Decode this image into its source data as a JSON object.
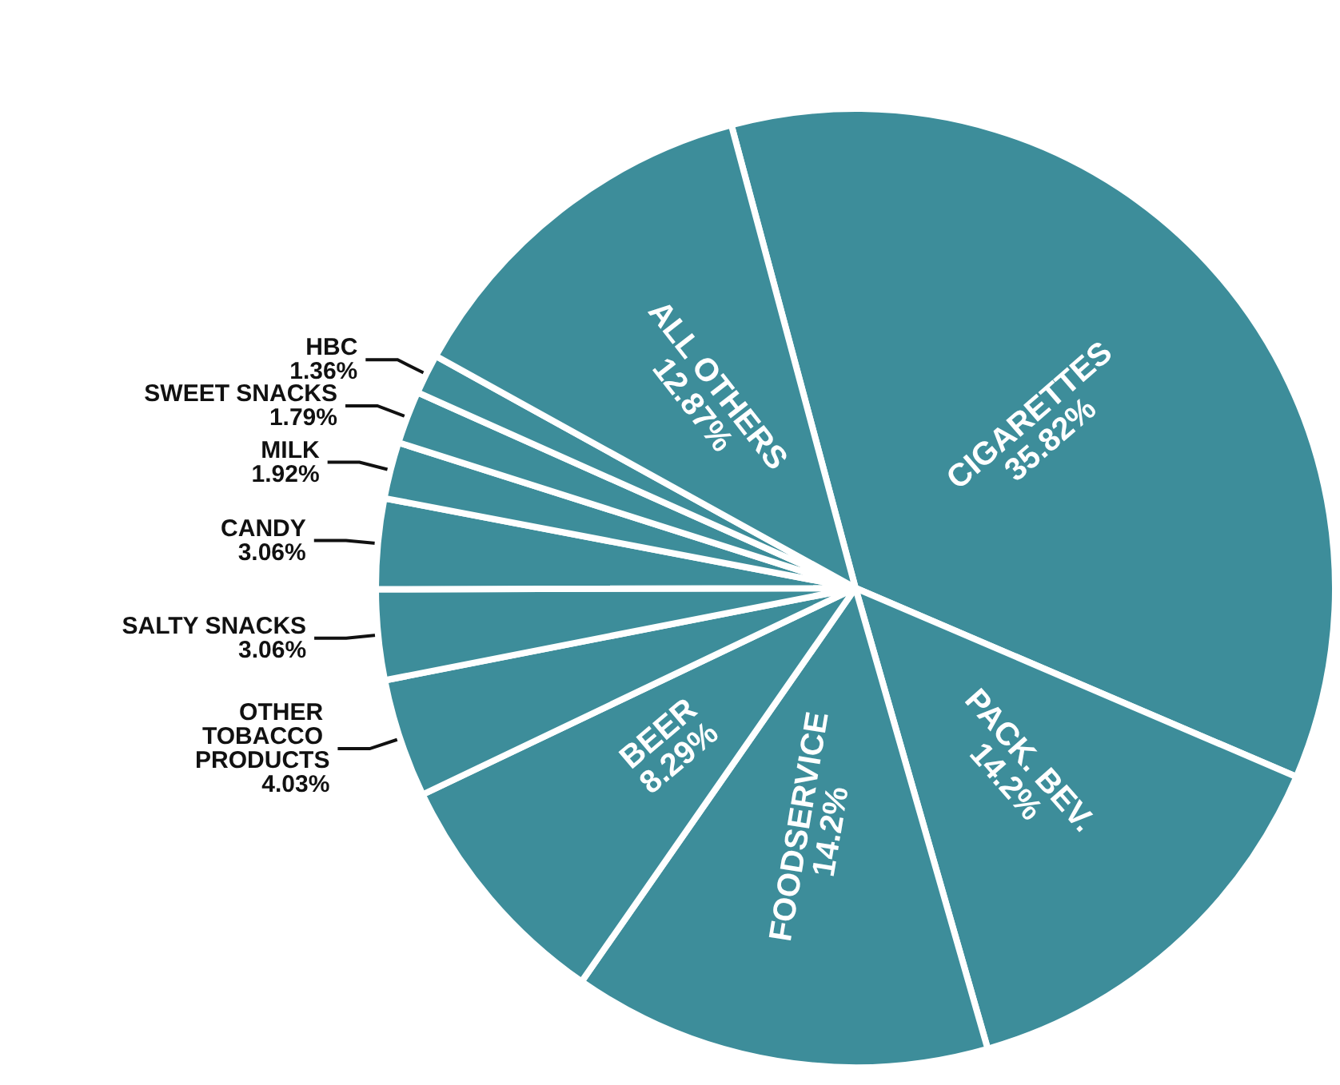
{
  "chart_data": {
    "type": "pie",
    "categories": [
      "CIGARETTES",
      "PACK. BEV.",
      "FOODSERVICE",
      "BEER",
      "OTHER TOBACCO PRODUCTS",
      "SALTY SNACKS",
      "CANDY",
      "MILK",
      "SWEET SNACKS",
      "HBC",
      "ALL OTHERS"
    ],
    "values": [
      35.82,
      14.2,
      14.2,
      8.29,
      4.03,
      3.06,
      3.06,
      1.92,
      1.79,
      1.36,
      12.87
    ],
    "colors": [
      "#3d8d9a",
      "#3d8d9a",
      "#3d8d9a",
      "#3d8d9a",
      "#3d8d9a",
      "#3d8d9a",
      "#3d8d9a",
      "#3d8d9a",
      "#3d8d9a",
      "#3d8d9a",
      "#3d8d9a"
    ],
    "value_labels": [
      "35.82%",
      "14.2%",
      "14.2%",
      "8.29%",
      "4.03%",
      "3.06%",
      "3.06%",
      "1.92%",
      "1.79%",
      "1.36%",
      "12.87%"
    ],
    "legend": false
  }
}
